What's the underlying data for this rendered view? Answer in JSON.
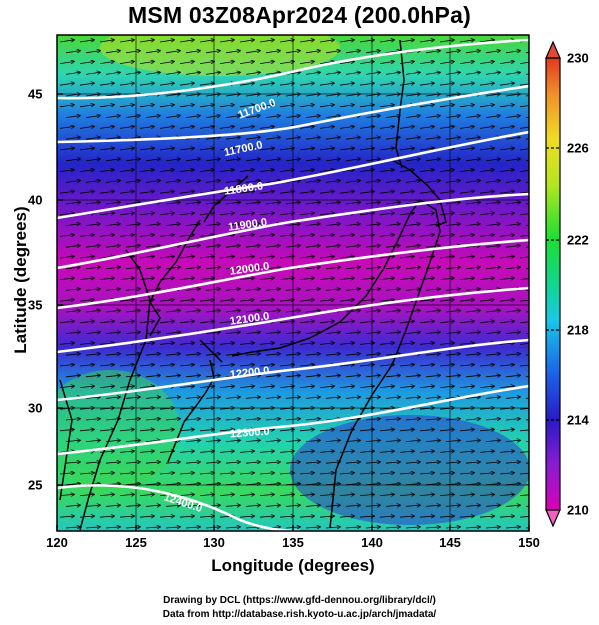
{
  "title": "MSM 03Z08Apr2024 (200.0hPa)",
  "x_axis": {
    "label": "Longitude (degrees)",
    "ticks": [
      "120",
      "125",
      "130",
      "135",
      "140",
      "145",
      "150"
    ],
    "range": [
      120,
      150
    ]
  },
  "y_axis": {
    "label": "Latitude  (degrees)",
    "ticks": [
      "25",
      "30",
      "35",
      "40",
      "45"
    ],
    "range": [
      22.5,
      47.5
    ]
  },
  "colorbar": {
    "ticks": [
      "230",
      "226",
      "222",
      "218",
      "214",
      "210"
    ],
    "range": [
      210,
      230
    ],
    "colors": [
      "#d900b8",
      "#8a1cd0",
      "#2a1ac8",
      "#1b62e6",
      "#18c8e8",
      "#12d690",
      "#1cde32",
      "#b4e61e",
      "#f0dc24",
      "#f0902a",
      "#e03a1e"
    ]
  },
  "contours": [
    {
      "label": "11700.0"
    },
    {
      "label": "11700.0"
    },
    {
      "label": "11800.0"
    },
    {
      "label": "11900.0"
    },
    {
      "label": "12000.0"
    },
    {
      "label": "12100.0"
    },
    {
      "label": "12200.0"
    },
    {
      "label": "12300.0"
    },
    {
      "label": "12400.0"
    }
  ],
  "credits": {
    "line1": "Drawing by DCL (https://www.gfd-dennou.org/library/dcl/)",
    "line2": "Data from http://database.rish.kyoto-u.ac.jp/arch/jmadata/"
  },
  "chart_data": {
    "type": "heatmap",
    "title": "MSM 03Z08Apr2024 (200.0hPa)",
    "xlabel": "Longitude (degrees)",
    "ylabel": "Latitude  (degrees)",
    "xlim": [
      120,
      150
    ],
    "ylim": [
      22.5,
      47.5
    ],
    "color_range": [
      210,
      230
    ],
    "shaded_field_bands": [
      {
        "lat_min": 44,
        "lat_max": 47.5,
        "value": 222
      },
      {
        "lat_min": 41,
        "lat_max": 44,
        "value": 217
      },
      {
        "lat_min": 38,
        "lat_max": 41,
        "value": 214
      },
      {
        "lat_min": 33,
        "lat_max": 38,
        "value": 211
      },
      {
        "lat_min": 30,
        "lat_max": 33,
        "value": 214
      },
      {
        "lat_min": 26,
        "lat_max": 30,
        "value": 216
      },
      {
        "lat_min": 22.5,
        "lat_max": 26,
        "value": 219
      }
    ],
    "contour_levels": [
      11700,
      11800,
      11900,
      12000,
      12100,
      12200,
      12300,
      12400
    ],
    "wind_direction": "westerly"
  }
}
